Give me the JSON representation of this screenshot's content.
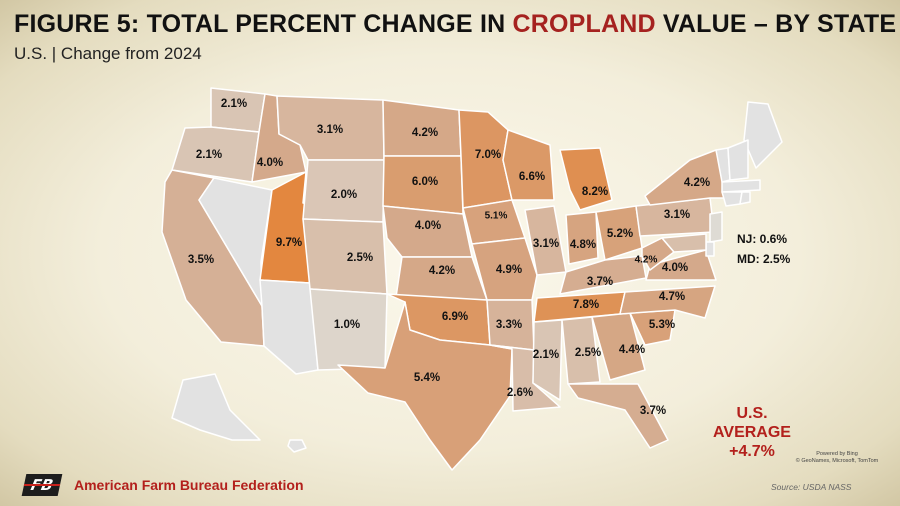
{
  "title": {
    "prefix": "FIGURE 5: TOTAL PERCENT CHANGE IN ",
    "highlight": "CROPLAND",
    "suffix": " VALUE – BY STATE"
  },
  "subtitle": "U.S. | Change from 2024",
  "colors": {
    "scale_low": "#dedcd6",
    "scale_mid": "#d4a98b",
    "scale_high": "#e3873f",
    "no_data": "#e2e2e2",
    "accent": "#b3201c"
  },
  "states": [
    {
      "name": "Washington",
      "value": 2.1,
      "label": "2.1%"
    },
    {
      "name": "Oregon",
      "value": 2.1,
      "label": "2.1%"
    },
    {
      "name": "California",
      "value": 3.5,
      "label": "3.5%"
    },
    {
      "name": "Idaho",
      "value": 4.0,
      "label": "4.0%"
    },
    {
      "name": "Nevada",
      "value": null,
      "label": ""
    },
    {
      "name": "Utah",
      "value": 9.7,
      "label": "9.7%"
    },
    {
      "name": "Arizona",
      "value": null,
      "label": ""
    },
    {
      "name": "Montana",
      "value": 3.1,
      "label": "3.1%"
    },
    {
      "name": "Wyoming",
      "value": 2.0,
      "label": "2.0%"
    },
    {
      "name": "Colorado",
      "value": 2.5,
      "label": "2.5%"
    },
    {
      "name": "New Mexico",
      "value": 1.0,
      "label": "1.0%"
    },
    {
      "name": "North Dakota",
      "value": 4.2,
      "label": "4.2%"
    },
    {
      "name": "South Dakota",
      "value": 6.0,
      "label": "6.0%"
    },
    {
      "name": "Nebraska",
      "value": 4.0,
      "label": "4.0%"
    },
    {
      "name": "Kansas",
      "value": 4.2,
      "label": "4.2%"
    },
    {
      "name": "Oklahoma",
      "value": 6.9,
      "label": "6.9%"
    },
    {
      "name": "Texas",
      "value": 5.4,
      "label": "5.4%"
    },
    {
      "name": "Minnesota",
      "value": 7.0,
      "label": "7.0%"
    },
    {
      "name": "Iowa",
      "value": 5.1,
      "label": "5.1%"
    },
    {
      "name": "Missouri",
      "value": 4.9,
      "label": "4.9%"
    },
    {
      "name": "Arkansas",
      "value": 3.3,
      "label": "3.3%"
    },
    {
      "name": "Louisiana",
      "value": 2.6,
      "label": "2.6%"
    },
    {
      "name": "Wisconsin",
      "value": 6.6,
      "label": "6.6%"
    },
    {
      "name": "Illinois",
      "value": 3.1,
      "label": "3.1%"
    },
    {
      "name": "Michigan",
      "value": 8.2,
      "label": "8.2%"
    },
    {
      "name": "Indiana",
      "value": 4.8,
      "label": "4.8%"
    },
    {
      "name": "Ohio",
      "value": 5.2,
      "label": "5.2%"
    },
    {
      "name": "Kentucky",
      "value": 3.7,
      "label": "3.7%"
    },
    {
      "name": "Tennessee",
      "value": 7.8,
      "label": "7.8%"
    },
    {
      "name": "Mississippi",
      "value": 2.1,
      "label": "2.1%"
    },
    {
      "name": "Alabama",
      "value": 2.5,
      "label": "2.5%"
    },
    {
      "name": "Georgia",
      "value": 4.4,
      "label": "4.4%"
    },
    {
      "name": "Florida",
      "value": 3.7,
      "label": "3.7%"
    },
    {
      "name": "South Carolina",
      "value": 5.3,
      "label": "5.3%"
    },
    {
      "name": "North Carolina",
      "value": 4.7,
      "label": "4.7%"
    },
    {
      "name": "Virginia",
      "value": 4.0,
      "label": "4.0%"
    },
    {
      "name": "West Virginia",
      "value": 4.2,
      "label": "4.2%"
    },
    {
      "name": "Pennsylvania",
      "value": 3.1,
      "label": "3.1%"
    },
    {
      "name": "New York",
      "value": 4.2,
      "label": "4.2%"
    },
    {
      "name": "Maine",
      "value": null,
      "label": ""
    },
    {
      "name": "Vermont",
      "value": null,
      "label": ""
    },
    {
      "name": "New Hampshire",
      "value": null,
      "label": ""
    },
    {
      "name": "Massachusetts",
      "value": null,
      "label": ""
    },
    {
      "name": "Connecticut",
      "value": null,
      "label": ""
    },
    {
      "name": "Rhode Island",
      "value": null,
      "label": ""
    },
    {
      "name": "New Jersey",
      "value": 0.6,
      "label": ""
    },
    {
      "name": "Delaware",
      "value": null,
      "label": ""
    },
    {
      "name": "Maryland",
      "value": 2.5,
      "label": ""
    },
    {
      "name": "Alaska",
      "value": null,
      "label": ""
    },
    {
      "name": "Hawaii",
      "value": null,
      "label": ""
    }
  ],
  "notes": {
    "nj": "NJ: 0.6%",
    "md": "MD: 2.5%"
  },
  "average": {
    "line1": "U.S.",
    "line2": "AVERAGE",
    "line3": "+4.7%"
  },
  "powered_by": {
    "line1": "Powered by Bing",
    "line2": "© GeoNames, Microsoft, TomTom"
  },
  "source": "Source: USDA NASS",
  "organization": "American Farm Bureau Federation",
  "logo_text": "FB"
}
